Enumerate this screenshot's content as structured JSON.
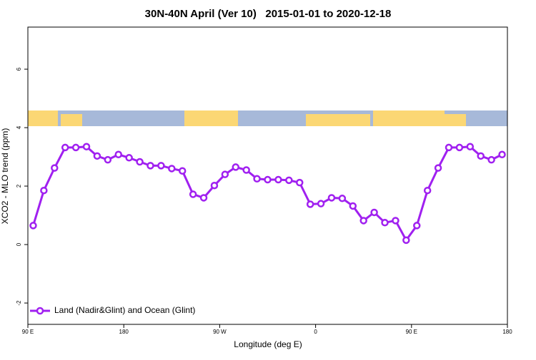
{
  "chart_data": {
    "type": "line",
    "title": "30N-40N April (Ver 10)   2015-01-01 to 2020-12-18",
    "xlabel": "Longitude (deg E)",
    "ylabel": "XCO2 - MLO trend (ppm)",
    "x": [
      95,
      105,
      115,
      125,
      135,
      145,
      155,
      165,
      175,
      185,
      195,
      205,
      215,
      225,
      235,
      245,
      255,
      265,
      275,
      285,
      295,
      305,
      315,
      325,
      335,
      345,
      355,
      365,
      375,
      385,
      395,
      405,
      415,
      425,
      435,
      445,
      455,
      465,
      475,
      485,
      495,
      505,
      515,
      525,
      535
    ],
    "series": [
      {
        "name": "Land (Nadir&Glint) and Ocean (Glint)",
        "color": "#a020f0",
        "values": [
          0.65,
          1.85,
          2.62,
          3.32,
          3.32,
          3.35,
          3.03,
          2.9,
          3.08,
          2.97,
          2.83,
          2.7,
          2.7,
          2.6,
          2.52,
          1.72,
          1.6,
          2.02,
          2.4,
          2.65,
          2.55,
          2.25,
          2.22,
          2.22,
          2.2,
          2.12,
          1.38,
          1.4,
          1.6,
          1.58,
          1.32,
          0.82,
          1.1,
          0.75,
          0.82,
          0.15,
          0.65,
          1.85,
          2.62,
          3.32,
          3.32,
          3.35,
          3.03,
          2.9,
          3.08
        ]
      }
    ],
    "xlim": [
      90,
      540
    ],
    "xticks": [
      {
        "value": 90,
        "label": "90 E"
      },
      180,
      {
        "value": 270,
        "label": "90 W"
      },
      {
        "value": 360,
        "label": "0"
      },
      {
        "value": 450,
        "label": "90 E"
      },
      {
        "value": 540,
        "label": "180"
      }
    ],
    "ylim": [
      -2.73,
      7.44
    ],
    "yticks": [
      -2,
      0,
      2,
      4,
      6
    ],
    "legend": "bottom-left"
  }
}
